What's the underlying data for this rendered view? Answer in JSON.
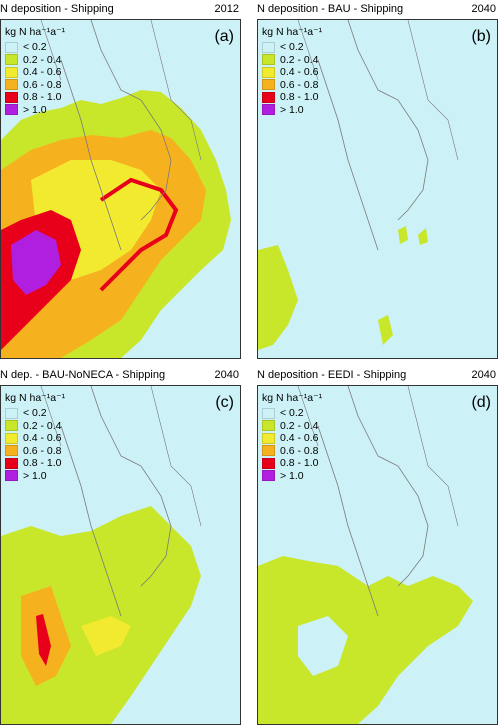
{
  "legend_title": "kg N ha⁻¹a⁻¹",
  "legend": [
    {
      "label": "< 0.2",
      "color": "#ccf1f6"
    },
    {
      "label": "0.2 - 0.4",
      "color": "#c8e62a"
    },
    {
      "label": "0.4 - 0.6",
      "color": "#f2ea2f"
    },
    {
      "label": "0.6 - 0.8",
      "color": "#f5b21e"
    },
    {
      "label": "0.8 - 1.0",
      "color": "#e8001a"
    },
    {
      "label": "> 1.0",
      "color": "#b01ee0"
    }
  ],
  "panels": [
    {
      "title": "N deposition - Shipping",
      "year": "2012",
      "letter": "(a)"
    },
    {
      "title": "N deposition - BAU - Shipping",
      "year": "2040",
      "letter": "(b)"
    },
    {
      "title": "N dep. - BAU-NoNECA - Shipping",
      "year": "2040",
      "letter": "(c)"
    },
    {
      "title": "N deposition - EEDI - Shipping",
      "year": "2040",
      "letter": "(d)"
    }
  ]
}
